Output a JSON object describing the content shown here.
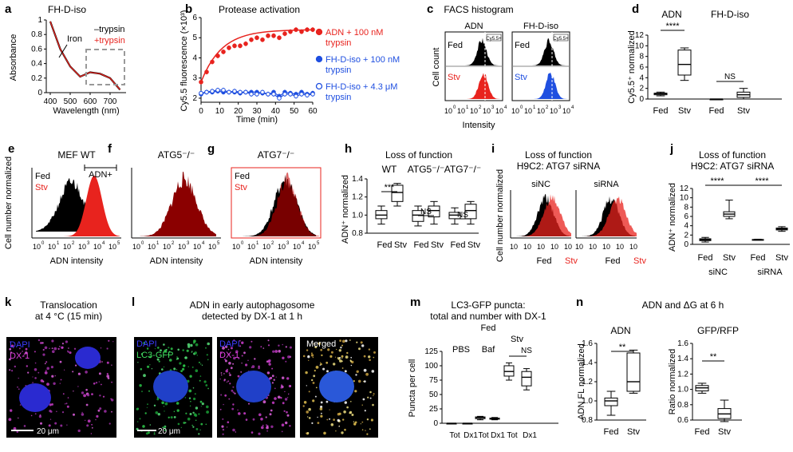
{
  "panels": {
    "a": {
      "letter": "a",
      "title": "FH-D-iso",
      "ylabel": "Absorbance",
      "xlabel": "Wavelength (nm)",
      "annotation": "Iron",
      "legend": [
        "–trypsin",
        "+trypsin"
      ],
      "colors": [
        "#000000",
        "#e8231e"
      ]
    },
    "b": {
      "letter": "b",
      "title": "Protease activation",
      "ylabel": "Cy5.5 fluorescence (×10³)",
      "xlabel": "Time (min)",
      "legend": [
        "ADN + 100 nM",
        "trypsin",
        "FH-D-iso + 100 nM",
        "trypsin",
        "FH-D-iso + 4.3 μM",
        "trypsin"
      ],
      "colors": [
        "#e8231e",
        "#1f4fe0"
      ]
    },
    "c": {
      "letter": "c",
      "title": "FACS histogram",
      "ylabel": "Cell count",
      "xlabel": "Intensity",
      "sub": [
        "ADN",
        "FH-D-iso"
      ],
      "fed": "Fed",
      "stv": "Stv",
      "tag": "Cy5.5+"
    },
    "d": {
      "letter": "d",
      "ylabel": "Cy5.5⁺ normalized",
      "groups": [
        "ADN",
        "FH-D-iso"
      ],
      "x": [
        "Fed",
        "Stv",
        "Fed",
        "Stv"
      ],
      "sig": [
        "****",
        "NS"
      ]
    },
    "e": {
      "letter": "e",
      "title": "MEF WT",
      "ylabel": "Cell number normalized",
      "xlabel": "ADN intensity",
      "fed": "Fed",
      "stv": "Stv",
      "gate": "ADN+"
    },
    "f": {
      "letter": "f",
      "title": "ATG5⁻/⁻",
      "xlabel": "ADN intensity"
    },
    "g": {
      "letter": "g",
      "title": "ATG7⁻/⁻",
      "xlabel": "ADN intensity",
      "fed": "Fed",
      "stv": "Stv"
    },
    "h": {
      "letter": "h",
      "title": "Loss of function",
      "ylabel": "ADN⁺ normalized",
      "groups": [
        "WT",
        "ATG5⁻/⁻",
        "ATG7⁻/⁻"
      ],
      "x": [
        "Fed",
        "Stv",
        "Fed",
        "Stv",
        "Fed",
        "Stv"
      ],
      "sig": [
        "***",
        "NS",
        "NS"
      ]
    },
    "i": {
      "letter": "i",
      "title": "Loss of function",
      "title2": "H9C2: ATG7 siRNA",
      "ylabel": "Cell number normalized",
      "sub": [
        "siNC",
        "siRNA"
      ],
      "fed": "Fed",
      "stv": "Stv"
    },
    "j": {
      "letter": "j",
      "title": "Loss of function",
      "title2": "H9C2: ATG7 siRNA",
      "ylabel": "ADN⁺ normalized",
      "x": [
        "Fed",
        "Stv",
        "Fed",
        "Stv"
      ],
      "groups": [
        "siNC",
        "siRNA"
      ],
      "sig": [
        "****",
        "****"
      ]
    },
    "k": {
      "letter": "k",
      "title": "Translocation",
      "title2": "at 4 °C (15 min)",
      "stain1": "DAPI",
      "stain2": "DX-1",
      "scale": "20 μm"
    },
    "l": {
      "letter": "l",
      "title": "ADN in early autophagosome",
      "title2": "detected by DX-1 at 1 h",
      "s1": "DAPI",
      "s2": "LC3-GFP",
      "s3": "DAPI",
      "s4": "DX-1",
      "s5": "Merged",
      "scale": "20 μm"
    },
    "m": {
      "letter": "m",
      "title": "LC3-GFP puncta:",
      "title2": "total and number with DX-1",
      "ylabel": "Puncta per cell",
      "top": [
        "Fed",
        "Stv"
      ],
      "cond": [
        "PBS",
        "Baf",
        "NS"
      ],
      "x": [
        "Tot",
        "Dx1",
        "Tot",
        "Dx1",
        "Tot",
        "Dx1"
      ]
    },
    "n": {
      "letter": "n",
      "title": "ADN and ΔG at 6 h",
      "sub1": "ADN",
      "sub2": "GFP/RFP",
      "ylabel1": "ADN FL normalized",
      "ylabel2": "Ratio normalized",
      "x": [
        "Fed",
        "Stv"
      ],
      "sig": [
        "**",
        "**"
      ]
    }
  },
  "chart_data": [
    {
      "id": "a",
      "type": "line",
      "x": [
        400,
        450,
        500,
        550,
        600,
        650,
        700,
        750
      ],
      "series": [
        {
          "name": "–trypsin",
          "values": [
            0.98,
            0.6,
            0.36,
            0.22,
            0.28,
            0.26,
            0.2,
            0.04
          ]
        },
        {
          "name": "+trypsin",
          "values": [
            0.98,
            0.6,
            0.36,
            0.22,
            0.28,
            0.26,
            0.2,
            0.04
          ]
        }
      ],
      "xlim": [
        380,
        780
      ],
      "ylim": [
        0,
        1
      ],
      "xticks": [
        400,
        500,
        600,
        700
      ],
      "yticks": [
        0,
        0.2,
        0.4,
        0.6,
        0.8,
        1
      ]
    },
    {
      "id": "b",
      "type": "scatter",
      "x": [
        0,
        3,
        6,
        9,
        12,
        15,
        18,
        21,
        24,
        27,
        30,
        33,
        36,
        39,
        42,
        45,
        48,
        51,
        54,
        57,
        60
      ],
      "series": [
        {
          "name": "ADN + 100 nM trypsin",
          "values": [
            2.8,
            3.3,
            3.8,
            4.1,
            4.3,
            4.5,
            4.6,
            4.6,
            4.7,
            4.9,
            5.0,
            4.9,
            5.1,
            5.1,
            5.0,
            5.2,
            5.3,
            5.4,
            5.3,
            5.4,
            5.4
          ]
        },
        {
          "name": "FH-D-iso + 100 nM trypsin",
          "values": [
            2.2,
            2.3,
            2.3,
            2.35,
            2.3,
            2.3,
            2.3,
            2.25,
            2.3,
            2.3,
            2.3,
            2.25,
            2.2,
            2.3,
            2.1,
            2.3,
            2.25,
            2.2,
            2.3,
            2.2,
            2.25
          ]
        },
        {
          "name": "FH-D-iso + 4.3 μM trypsin",
          "values": [
            2.25,
            2.3,
            2.35,
            2.4,
            2.4,
            2.3,
            2.35,
            2.3,
            2.3,
            2.2,
            2.2,
            2.3,
            2.2,
            2.2,
            2.0,
            2.2,
            2.2,
            2.1,
            2.2,
            2.15,
            2.2
          ]
        }
      ],
      "xlim": [
        0,
        60
      ],
      "ylim": [
        1.8,
        6
      ],
      "xticks": [
        0,
        10,
        20,
        30,
        40,
        50,
        60
      ],
      "yticks": [
        2,
        3,
        4,
        5,
        6
      ]
    },
    {
      "id": "d",
      "type": "box",
      "categories": [
        "Fed",
        "Stv",
        "Fed",
        "Stv"
      ],
      "boxes": [
        [
          0.6,
          0.8,
          1.0,
          1.1,
          1.3
        ],
        [
          3.5,
          4.5,
          6.5,
          9.2,
          9.6
        ],
        [
          0,
          0,
          0,
          0,
          0
        ],
        [
          0,
          0.3,
          0.8,
          1.3,
          2.0
        ]
      ],
      "ylim": [
        0,
        12
      ],
      "yticks": [
        0,
        2,
        4,
        6,
        8,
        10,
        12
      ]
    },
    {
      "id": "h",
      "type": "box",
      "categories": [
        "Fed",
        "Stv",
        "Fed",
        "Stv",
        "Fed",
        "Stv"
      ],
      "boxes": [
        [
          0.9,
          0.96,
          1.0,
          1.05,
          1.1
        ],
        [
          1.1,
          1.15,
          1.25,
          1.33,
          1.35
        ],
        [
          0.88,
          0.93,
          1.0,
          1.05,
          1.1
        ],
        [
          0.9,
          0.98,
          1.05,
          1.1,
          1.15
        ],
        [
          0.9,
          0.96,
          1.0,
          1.03,
          1.08
        ],
        [
          0.9,
          0.96,
          1.05,
          1.12,
          1.15
        ]
      ],
      "ylim": [
        0.8,
        1.4
      ],
      "yticks": [
        0.8,
        1.0,
        1.2,
        1.4
      ]
    },
    {
      "id": "j",
      "type": "box",
      "categories": [
        "Fed",
        "Stv",
        "Fed",
        "Stv"
      ],
      "boxes": [
        [
          0.5,
          0.8,
          1.0,
          1.2,
          1.5
        ],
        [
          5.5,
          6.0,
          6.5,
          7.0,
          9.5
        ],
        [
          0.9,
          0.95,
          1.0,
          1.05,
          1.1
        ],
        [
          2.8,
          3.1,
          3.3,
          3.5,
          3.8
        ]
      ],
      "ylim": [
        0,
        12
      ],
      "yticks": [
        0,
        2,
        4,
        6,
        8,
        10,
        12
      ]
    },
    {
      "id": "m",
      "type": "box",
      "categories": [
        "Tot",
        "Dx1",
        "Tot",
        "Dx1",
        "Tot",
        "Dx1"
      ],
      "boxes": [
        [
          0,
          0,
          0,
          0,
          0
        ],
        [
          0,
          0,
          0,
          0,
          0
        ],
        [
          6,
          8,
          10,
          11,
          12
        ],
        [
          6,
          7,
          8,
          9,
          10
        ],
        [
          75,
          82,
          90,
          100,
          105
        ],
        [
          58,
          65,
          80,
          90,
          95
        ]
      ],
      "ylim": [
        0,
        125
      ],
      "yticks": [
        0,
        25,
        50,
        75,
        100,
        125
      ]
    },
    {
      "id": "n1",
      "type": "box",
      "categories": [
        "Fed",
        "Stv"
      ],
      "boxes": [
        [
          0.85,
          0.95,
          1.0,
          1.03,
          1.1
        ],
        [
          1.08,
          1.1,
          1.2,
          1.5,
          1.53
        ]
      ],
      "ylim": [
        0.8,
        1.6
      ],
      "yticks": [
        0.8,
        1.0,
        1.2,
        1.4,
        1.6
      ]
    },
    {
      "id": "n2",
      "type": "box",
      "categories": [
        "Fed",
        "Stv"
      ],
      "boxes": [
        [
          0.95,
          0.98,
          1.02,
          1.05,
          1.08
        ],
        [
          0.58,
          0.62,
          0.68,
          0.75,
          0.86
        ]
      ],
      "ylim": [
        0.6,
        1.6
      ],
      "yticks": [
        0.6,
        0.8,
        1.0,
        1.2,
        1.4,
        1.6
      ]
    }
  ]
}
